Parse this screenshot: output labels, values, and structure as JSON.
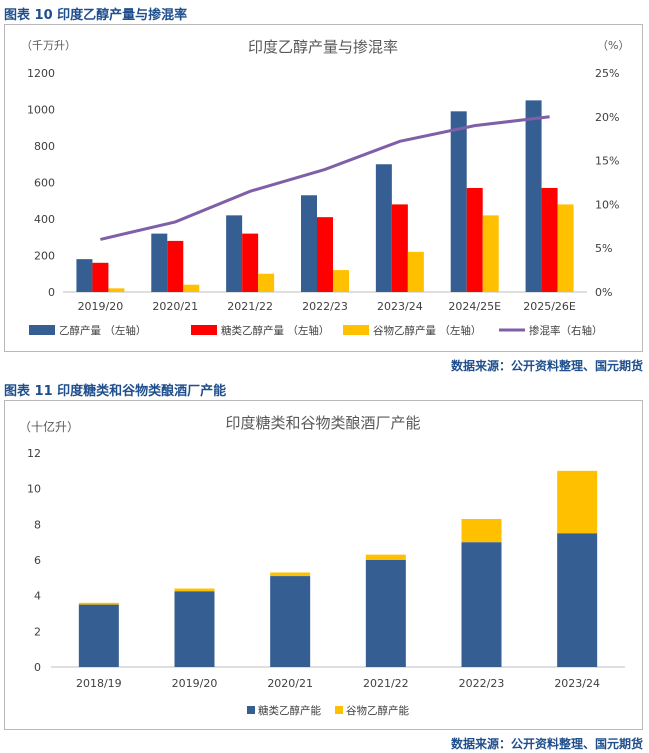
{
  "figures": [
    {
      "caption": "图表 10  印度乙醇产量与掺混率",
      "source": "数据来源：公开资料整理、国元期货"
    },
    {
      "caption": "图表 11  印度糖类和谷物类酿酒厂产能",
      "source": "数据来源：公开资料整理、国元期货"
    }
  ],
  "chart_data": [
    {
      "type": "bar",
      "title": "印度乙醇产量与掺混率",
      "ylabel": "（千万升）",
      "y2label": "（%）",
      "ylim": [
        0,
        1200
      ],
      "yticks": [
        0,
        200,
        400,
        600,
        800,
        1000,
        1200
      ],
      "y2lim": [
        0,
        25
      ],
      "y2ticks": [
        "0%",
        "5%",
        "10%",
        "15%",
        "20%",
        "25%"
      ],
      "categories": [
        "2019/20",
        "2020/21",
        "2021/22",
        "2022/23",
        "2023/24",
        "2024/25E",
        "2025/26E"
      ],
      "series": [
        {
          "name": "乙醇产量 （左轴）",
          "type": "bar",
          "axis": "left",
          "color": "#355e92",
          "values": [
            180,
            320,
            420,
            530,
            700,
            990,
            1050
          ]
        },
        {
          "name": "糖类乙醇产量 （左轴）",
          "type": "bar",
          "axis": "left",
          "color": "#ff0000",
          "values": [
            160,
            280,
            320,
            410,
            480,
            570,
            570
          ]
        },
        {
          "name": "谷物乙醇产量 （左轴）",
          "type": "bar",
          "axis": "left",
          "color": "#ffc000",
          "values": [
            20,
            40,
            100,
            120,
            220,
            420,
            480
          ]
        },
        {
          "name": "掺混率（右轴）",
          "type": "line",
          "axis": "right",
          "color": "#7f5fa8",
          "values": [
            6,
            8,
            11.5,
            14,
            17.2,
            19,
            20
          ]
        }
      ],
      "grid": false,
      "legend": "bottom"
    },
    {
      "type": "bar",
      "stacked": true,
      "title": "印度糖类和谷物类酿酒厂产能",
      "ylabel": "（十亿升）",
      "ylim": [
        0,
        12
      ],
      "yticks": [
        0,
        2,
        4,
        6,
        8,
        10,
        12
      ],
      "categories": [
        "2018/19",
        "2019/20",
        "2020/21",
        "2021/22",
        "2022/23",
        "2023/24"
      ],
      "series": [
        {
          "name": "糖类乙醇产能",
          "color": "#355e92",
          "values": [
            3.5,
            4.25,
            5.1,
            6.0,
            7.0,
            7.5
          ]
        },
        {
          "name": "谷物乙醇产能",
          "color": "#ffc000",
          "values": [
            0.1,
            0.15,
            0.2,
            0.3,
            1.3,
            3.5
          ]
        }
      ],
      "grid": false,
      "legend": "bottom"
    }
  ]
}
